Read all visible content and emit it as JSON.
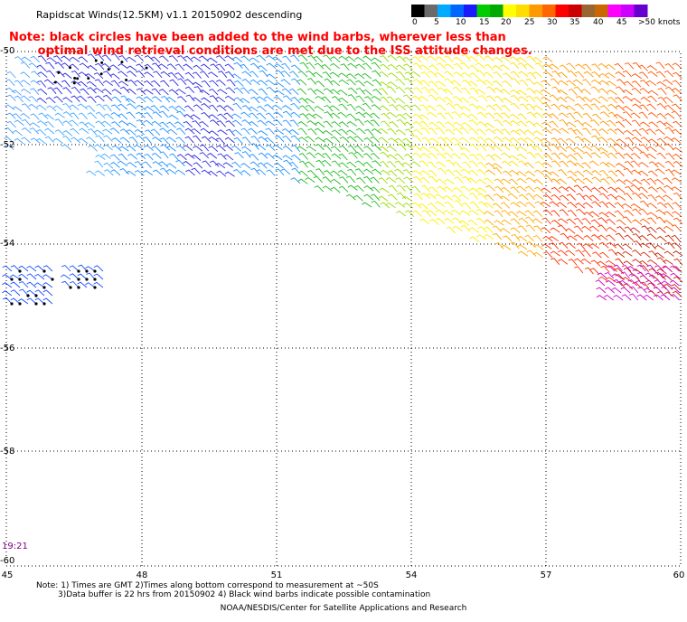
{
  "title": "Rapidscat Winds(12.5KM) v1.1 20150902 descending",
  "note_line1": "Note: black circles have been added to the wind barbs, wherever less than",
  "note_line2": "       optimal wind retrieval conditions are met due to the ISS attitude changes.",
  "time_label": "19:21",
  "footnote_line1": "Note: 1) Times are GMT 2)Times along bottom correspond to measurement at ~50S",
  "footnote_line2": "3)Data buffer is 22 hrs from 20150902 4) Black wind barbs indicate possible contamination",
  "credit": "NOAA/NESDIS/Center for Satellite Applications and Research",
  "legend": {
    "unit": ">50 knots",
    "labels": [
      "0",
      "5",
      "10",
      "15",
      "20",
      "25",
      "30",
      "35",
      "40",
      "45"
    ],
    "colors": [
      "#000000",
      "#6a6a6a",
      "#00aaff",
      "#0066ff",
      "#1a1aff",
      "#00cc00",
      "#00aa00",
      "#ffff00",
      "#ffdd00",
      "#ff9900",
      "#ff6600",
      "#ff0000",
      "#cc0000",
      "#996633",
      "#cc6600",
      "#ff00ff",
      "#cc00ff",
      "#6600cc"
    ]
  },
  "axes": {
    "x_ticks": [
      "45",
      "48",
      "51",
      "54",
      "57",
      "60"
    ],
    "y_ticks": [
      "-50",
      "-52",
      "-54",
      "-56",
      "-58",
      "-60"
    ]
  }
}
